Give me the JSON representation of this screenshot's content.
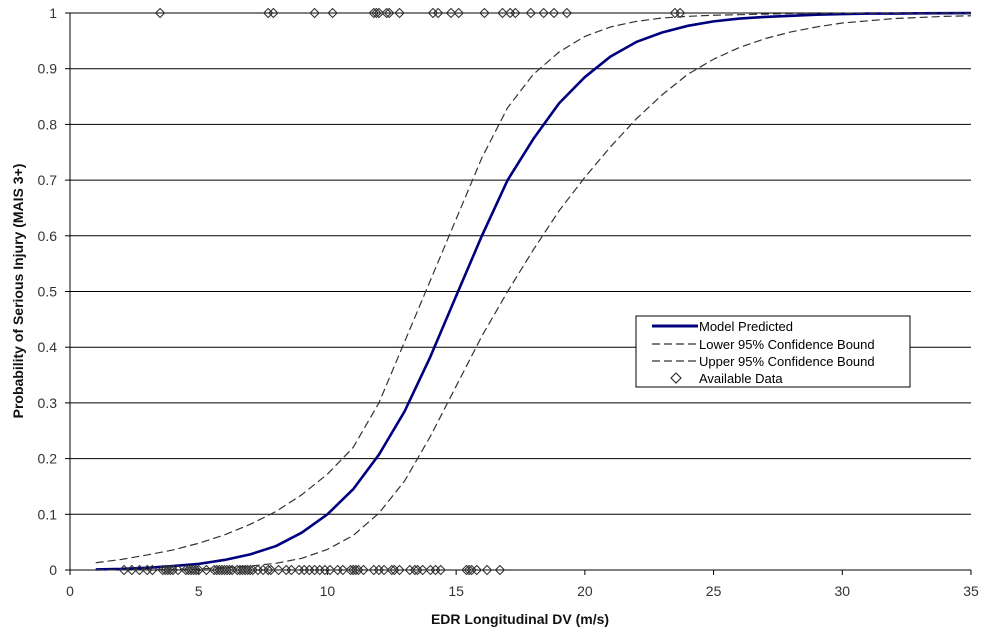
{
  "chart_data": {
    "type": "line",
    "title": "",
    "xlabel": "EDR Longitudinal DV (m/s)",
    "ylabel": "Probability of Serious Injury (MAIS 3+)",
    "xlim": [
      0,
      35
    ],
    "ylim": [
      0,
      1
    ],
    "x_ticks": [
      "0",
      "5",
      "10",
      "15",
      "20",
      "25",
      "30",
      "35"
    ],
    "y_ticks": [
      "0",
      "0.1",
      "0.2",
      "0.3",
      "0.4",
      "0.5",
      "0.6",
      "0.7",
      "0.8",
      "0.9",
      "1"
    ],
    "grid": "horizontal",
    "legend_position": "center-right",
    "series": [
      {
        "name": "Model Predicted",
        "style": "solid",
        "color": "#00007f",
        "x": [
          1,
          2,
          3,
          4,
          5,
          6,
          7,
          8,
          9,
          10,
          11,
          12,
          13,
          14,
          15,
          16,
          17,
          18,
          19,
          20,
          21,
          22,
          23,
          24,
          25,
          26,
          27,
          28,
          29,
          30,
          31,
          32,
          33,
          34,
          35
        ],
        "y": [
          0.001,
          0.002,
          0.004,
          0.007,
          0.011,
          0.018,
          0.028,
          0.043,
          0.067,
          0.1,
          0.145,
          0.207,
          0.285,
          0.383,
          0.492,
          0.6,
          0.7,
          0.774,
          0.838,
          0.885,
          0.922,
          0.948,
          0.965,
          0.977,
          0.985,
          0.99,
          0.993,
          0.995,
          0.997,
          0.998,
          0.999,
          0.999,
          0.9995,
          0.9997,
          0.9998
        ]
      },
      {
        "name": "Lower 95% Confidence Bound",
        "style": "dashed",
        "color": "#333333",
        "x": [
          1,
          2,
          3,
          4,
          5,
          6,
          7,
          8,
          9,
          10,
          11,
          12,
          13,
          14,
          15,
          16,
          17,
          18,
          19,
          20,
          21,
          22,
          23,
          24,
          25,
          26,
          27,
          28,
          29,
          30,
          31,
          32,
          33,
          34,
          35
        ],
        "y": [
          0.013,
          0.019,
          0.027,
          0.036,
          0.048,
          0.063,
          0.082,
          0.105,
          0.135,
          0.172,
          0.22,
          0.3,
          0.41,
          0.52,
          0.63,
          0.74,
          0.83,
          0.89,
          0.93,
          0.958,
          0.975,
          0.985,
          0.991,
          0.994,
          0.996,
          0.997,
          0.998,
          0.999,
          0.999,
          0.9995,
          0.9997,
          0.9998,
          0.9999,
          0.9999,
          1.0
        ]
      },
      {
        "name": "Upper 95% Confidence Bound",
        "style": "dashed",
        "color": "#333333",
        "x": [
          1,
          2,
          3,
          4,
          5,
          6,
          7,
          8,
          9,
          10,
          11,
          12,
          13,
          14,
          15,
          16,
          17,
          18,
          19,
          20,
          21,
          22,
          23,
          24,
          25,
          26,
          27,
          28,
          29,
          30,
          31,
          32,
          33,
          34,
          35
        ],
        "y": [
          0.0001,
          0.0002,
          0.0004,
          0.001,
          0.002,
          0.004,
          0.007,
          0.012,
          0.021,
          0.037,
          0.062,
          0.102,
          0.16,
          0.24,
          0.33,
          0.42,
          0.5,
          0.575,
          0.645,
          0.705,
          0.76,
          0.81,
          0.853,
          0.89,
          0.917,
          0.938,
          0.954,
          0.966,
          0.975,
          0.982,
          0.986,
          0.99,
          0.992,
          0.994,
          0.995
        ]
      },
      {
        "name": "Available Data",
        "style": "markers",
        "marker": "open-diamond",
        "color": "#333333",
        "points_top_y": 1,
        "points_top_x": [
          3.5,
          7.7,
          7.9,
          9.5,
          10.2,
          11.8,
          11.9,
          12.0,
          12.3,
          12.4,
          12.8,
          14.1,
          14.3,
          14.8,
          15.1,
          16.1,
          16.8,
          17.1,
          17.3,
          17.9,
          18.4,
          18.8,
          19.3,
          23.5,
          23.7
        ],
        "points_bottom_y": 0,
        "points_bottom_x": [
          2.1,
          2.4,
          2.7,
          3.0,
          3.2,
          3.6,
          3.7,
          3.8,
          3.9,
          4.0,
          4.2,
          4.5,
          4.6,
          4.7,
          4.8,
          4.9,
          5.0,
          5.3,
          5.6,
          5.7,
          5.8,
          5.9,
          6.0,
          6.1,
          6.2,
          6.3,
          6.5,
          6.6,
          6.7,
          6.8,
          6.9,
          7.0,
          7.1,
          7.3,
          7.5,
          7.7,
          7.8,
          8.1,
          8.4,
          8.6,
          8.9,
          9.1,
          9.3,
          9.5,
          9.7,
          9.9,
          10.1,
          10.4,
          10.6,
          10.9,
          11.0,
          11.1,
          11.2,
          11.4,
          11.8,
          12.0,
          12.2,
          12.5,
          12.6,
          12.8,
          13.2,
          13.4,
          13.5,
          13.7,
          14.0,
          14.2,
          14.4,
          15.4,
          15.5,
          15.6,
          15.8,
          16.2,
          16.7
        ]
      }
    ]
  }
}
